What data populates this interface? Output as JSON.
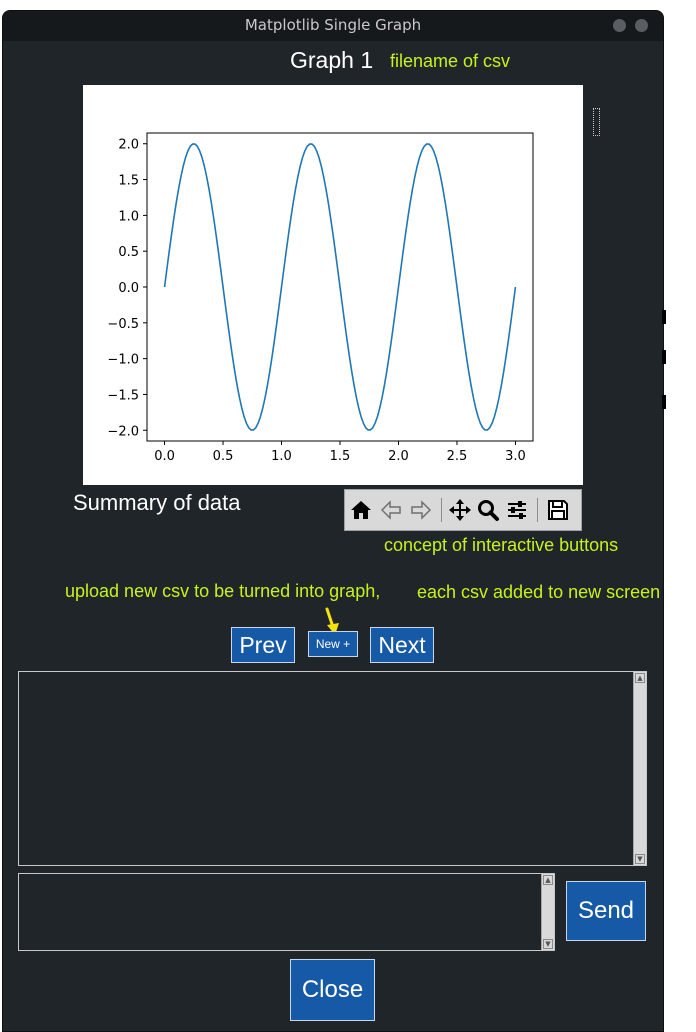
{
  "window": {
    "title": "Matplotlib Single Graph"
  },
  "header": {
    "graph_title": "Graph 1",
    "filename_note": "filename of csv"
  },
  "plot": {
    "chart_data": {
      "type": "line",
      "x_range": [
        0,
        3
      ],
      "x_step": 0.02,
      "function": "2*sin(2*pi*x)",
      "ylim": [
        -2.15,
        2.15
      ],
      "xlim": [
        -0.15,
        3.15
      ],
      "x_ticks": [
        "0.0",
        "0.5",
        "1.0",
        "1.5",
        "2.0",
        "2.5",
        "3.0"
      ],
      "x_tick_values": [
        0,
        0.5,
        1,
        1.5,
        2,
        2.5,
        3
      ],
      "y_ticks": [
        "2.0",
        "1.5",
        "1.0",
        "0.5",
        "0.0",
        "−0.5",
        "−1.0",
        "−1.5",
        "−2.0"
      ],
      "y_tick_values": [
        2,
        1.5,
        1,
        0.5,
        0,
        -0.5,
        -1,
        -1.5,
        -2
      ],
      "line_color": "#1f77b4",
      "grid": false
    }
  },
  "summary": {
    "label": "Summary of data"
  },
  "toolbar": {
    "icons": [
      "home-icon",
      "back-icon",
      "forward-icon",
      "pan-icon",
      "zoom-icon",
      "configure-icon",
      "save-icon"
    ],
    "note": "concept of interactive buttons"
  },
  "upload_note": "upload new csv to be turned into graph,",
  "screen_note": "each csv added to new screen",
  "nav": {
    "prev": "Prev",
    "new": "New +",
    "next": "Next"
  },
  "send": {
    "label": "Send"
  },
  "close": {
    "label": "Close"
  },
  "colors": {
    "accent": "#1659a6",
    "note": "#c6f21c",
    "background": "#202529",
    "arrow": "#f5e30c"
  }
}
